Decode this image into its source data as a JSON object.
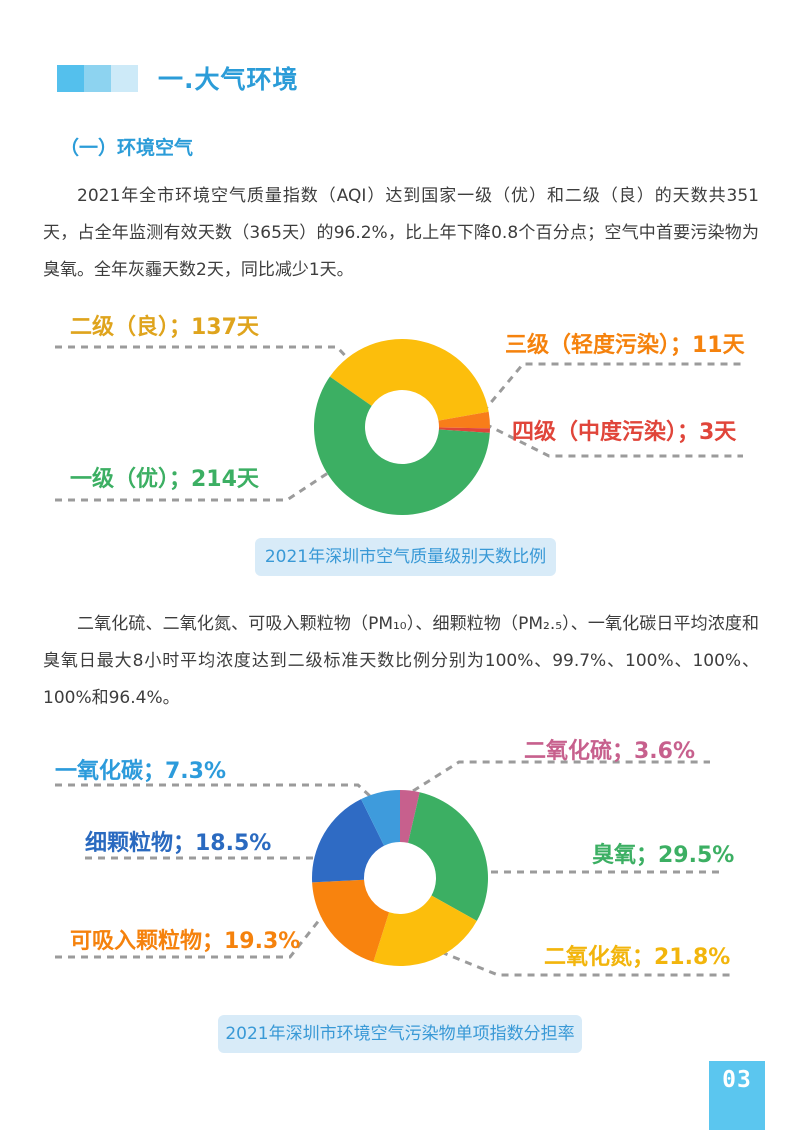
{
  "page": {
    "header": {
      "title": "一.大气环境"
    },
    "section_heading": "（一）环境空气",
    "paragraphs": [
      "2021年全市环境空气质量指数（AQI）达到国家一级（优）和二级（良）的天数共351天，占全年监测有效天数（365天）的96.2%，比上年下降0.8个百分点；空气中首要污染物为臭氧。全年灰霾天数2天，同比减少1天。",
      "二氧化硫、二氧化氮、可吸入颗粒物（PM₁₀）、细颗粒物（PM₂.₅）、一氧化碳日平均浓度和臭氧日最大8小时平均浓度达到二级标准天数比例分别为100%、99.7%、100%、100%、100%和96.4%。"
    ],
    "page_number": "03",
    "accent_colors": {
      "title_blue": "#2B9CD8",
      "square_dark": "#54C0ED",
      "square_mid": "#8DD3F0",
      "square_light": "#CDEAF8",
      "caption_bg": "#D8EBF8",
      "caption_text": "#3999D6",
      "page_number_bg": "#5BC6EF",
      "leader_gray": "#9B9B9B"
    }
  },
  "chart_data": [
    {
      "type": "pie",
      "title": "2021年深圳市空气质量级别天数比例",
      "unit": "天",
      "total": 365,
      "start_angle": -55.1,
      "legend_position": "callout-labels",
      "slices": [
        {
          "label": "二级（良）",
          "value": 137,
          "display": "二级（良）；137天",
          "color": "#FCBE0C",
          "label_color": "#DFA41D"
        },
        {
          "label": "三级（轻度污染）",
          "value": 11,
          "display": "三级（轻度污染）；11天",
          "color": "#F87D1A",
          "label_color": "#F5820D"
        },
        {
          "label": "四级（中度污染）",
          "value": 3,
          "display": "四级（中度污染）；3天",
          "color": "#E0453A",
          "label_color": "#E0453A"
        },
        {
          "label": "一级（优）",
          "value": 214,
          "display": "一级（优）；214天",
          "color": "#3CAF63",
          "label_color": "#3CAF63"
        }
      ]
    },
    {
      "type": "pie",
      "title": "2021年深圳市环境空气污染物单项指数分担率",
      "unit": "%",
      "total": 100,
      "start_angle": 0,
      "legend_position": "callout-labels",
      "slices": [
        {
          "label": "二氧化硫",
          "value": 3.6,
          "display": "二氧化硫；3.6%",
          "color": "#C7608D",
          "label_color": "#C7608D"
        },
        {
          "label": "臭氧",
          "value": 29.5,
          "display": "臭氧；29.5%",
          "color": "#3CAF63",
          "label_color": "#3CAF63"
        },
        {
          "label": "二氧化氮",
          "value": 21.8,
          "display": "二氧化氮；21.8%",
          "color": "#FCBE0C",
          "label_color": "#F2B50C"
        },
        {
          "label": "可吸入颗粒物",
          "value": 19.3,
          "display": "可吸入颗粒物；19.3%",
          "color": "#F8830E",
          "label_color": "#F5820D"
        },
        {
          "label": "细颗粒物",
          "value": 18.5,
          "display": "细颗粒物；18.5%",
          "color": "#2F6BC4",
          "label_color": "#2A6AC0"
        },
        {
          "label": "一氧化碳",
          "value": 7.3,
          "display": "一氧化碳；7.3%",
          "color": "#3E9BDC",
          "label_color": "#2C9BDB"
        }
      ]
    }
  ]
}
